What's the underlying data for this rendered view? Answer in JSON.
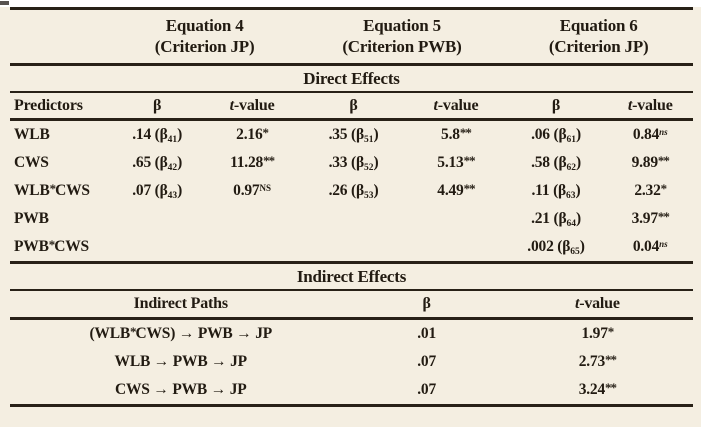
{
  "labels": {
    "beta": "β",
    "t_italic": "t",
    "t_rest": "-value"
  },
  "header": {
    "eq4": {
      "line1": "Equation 4",
      "line2": "(Criterion JP)"
    },
    "eq5": {
      "line1": "Equation 5",
      "line2": "(Criterion PWB)"
    },
    "eq6": {
      "line1": "Equation 6",
      "line2": "(Criterion JP)"
    }
  },
  "direct": {
    "section_title": "Direct Effects",
    "predictors_label": "Predictors",
    "rows": [
      {
        "predictor": {
          "a": "WLB"
        },
        "e4b": {
          "v": ".14 (β",
          "sub": "41",
          "c": ")"
        },
        "e4t": {
          "v": "2.16",
          "sup": "*"
        },
        "e5b": {
          "v": ".35 (β",
          "sub": "51",
          "c": ")"
        },
        "e5t": {
          "v": "5.8",
          "sup": "**"
        },
        "e6b": {
          "v": ".06 (β",
          "sub": "61",
          "c": ")"
        },
        "e6t": {
          "v": "0.84",
          "sup": "ns"
        }
      },
      {
        "predictor": {
          "a": "CWS"
        },
        "e4b": {
          "v": ".65 (β",
          "sub": "42",
          "c": ")"
        },
        "e4t": {
          "v": "11.28",
          "sup": "**"
        },
        "e5b": {
          "v": ".33 (β",
          "sub": "52",
          "c": ")"
        },
        "e5t": {
          "v": "5.13",
          "sup": "**"
        },
        "e6b": {
          "v": ".58 (β",
          "sub": "62",
          "c": ")"
        },
        "e6t": {
          "v": "9.89",
          "sup": "**"
        }
      },
      {
        "predictor": {
          "a": "WLB",
          "sup": "*",
          "b": "CWS"
        },
        "e4b": {
          "v": ".07 (β",
          "sub": "43",
          "c": ")"
        },
        "e4t": {
          "v": "0.97",
          "supcaps": "NS"
        },
        "e5b": {
          "v": ".26 (β",
          "sub": "53",
          "c": ")"
        },
        "e5t": {
          "v": "4.49",
          "sup": "**"
        },
        "e6b": {
          "v": ".11 (β",
          "sub": "63",
          "c": ")"
        },
        "e6t": {
          "v": "2.32",
          "sup": "*"
        }
      },
      {
        "predictor": {
          "a": "PWB"
        },
        "e6b": {
          "v": ".21 (β",
          "sub": "64",
          "c": ")"
        },
        "e6t": {
          "v": "3.97",
          "sup": "**"
        }
      },
      {
        "predictor": {
          "a": "PWB",
          "sup": "*",
          "b": "CWS"
        },
        "e6b": {
          "v": ".002 (β",
          "sub": "65",
          "c": ")"
        },
        "e6t": {
          "v": "0.04",
          "sup": "ns"
        }
      }
    ]
  },
  "indirect": {
    "section_title": "Indirect Effects",
    "paths_label": "Indirect Paths",
    "rows": [
      {
        "path": {
          "a": "(WLB",
          "sup": "*",
          "b": "CWS) → PWB → JP"
        },
        "beta": ".01",
        "t": {
          "v": "1.97",
          "sup": "*"
        }
      },
      {
        "path": {
          "a": "WLB → PWB → JP"
        },
        "beta": ".07",
        "t": {
          "v": "2.73",
          "sup": "**"
        }
      },
      {
        "path": {
          "a": "CWS → PWB → JP"
        },
        "beta": ".07",
        "t": {
          "v": "3.24",
          "sup": "**"
        }
      }
    ]
  }
}
